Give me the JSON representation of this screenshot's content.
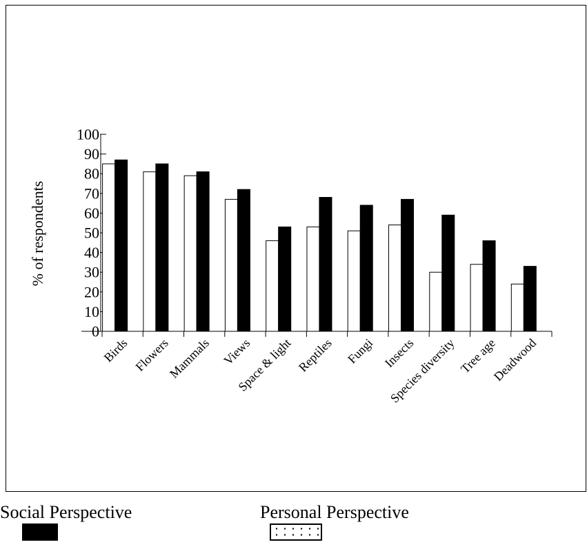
{
  "chart_data": {
    "type": "bar",
    "title": "",
    "xlabel": "",
    "ylabel": "% of respondents",
    "ylim": [
      0,
      100
    ],
    "yticks": [
      0,
      10,
      20,
      30,
      40,
      50,
      60,
      70,
      80,
      90,
      100
    ],
    "categories": [
      "Birds",
      "Flowers",
      "Mammals",
      "Views",
      "Space & light",
      "Reptiles",
      "Fungi",
      "Insects",
      "Species diversity",
      "Tree age",
      "Deadwood"
    ],
    "series": [
      {
        "name": "Personal Perspective",
        "color": "#ffffff",
        "values": [
          85,
          81,
          79,
          67,
          46,
          53,
          51,
          54,
          30,
          34,
          24
        ]
      },
      {
        "name": "Social Perspective",
        "color": "#000000",
        "values": [
          87,
          85,
          81,
          72,
          53,
          68,
          64,
          67,
          59,
          46,
          33
        ]
      }
    ],
    "grid": false,
    "legend": "bottom"
  },
  "legend": {
    "social_label": "Social Perspective",
    "personal_label": "Personal Perspective"
  }
}
